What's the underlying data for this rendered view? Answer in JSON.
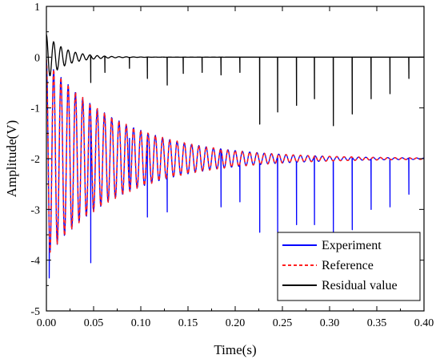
{
  "chart_data": {
    "type": "line",
    "title": "",
    "xlabel": "Time(s)",
    "ylabel": "Amplitude(V)",
    "xlim": [
      0.0,
      0.4
    ],
    "ylim": [
      -5,
      1
    ],
    "xticks": [
      "0.00",
      "0.05",
      "0.10",
      "0.15",
      "0.20",
      "0.25",
      "0.30",
      "0.35",
      "0.40"
    ],
    "yticks": [
      "1",
      "0",
      "-1",
      "-2",
      "-3",
      "-4",
      "-5"
    ],
    "grid": false,
    "legend_position": "bottom-right",
    "series": [
      {
        "name": "Experiment",
        "color": "#0000ff",
        "style": "solid",
        "model": "damped-sine",
        "offset": -2.0,
        "initial_amplitude": 1.95,
        "decay_time_s": 0.08,
        "frequency_hz": 130,
        "sample_step_s": 0.0005,
        "spikes": [
          {
            "t": 0.003,
            "y": -4.35
          },
          {
            "t": 0.047,
            "y": -4.05
          },
          {
            "t": 0.088,
            "y": -1.6
          },
          {
            "t": 0.107,
            "y": -3.15
          },
          {
            "t": 0.128,
            "y": -3.05
          },
          {
            "t": 0.185,
            "y": -2.95
          },
          {
            "t": 0.205,
            "y": -2.85
          },
          {
            "t": 0.226,
            "y": -3.45
          },
          {
            "t": 0.245,
            "y": -3.45
          },
          {
            "t": 0.265,
            "y": -3.3
          },
          {
            "t": 0.284,
            "y": -3.3
          },
          {
            "t": 0.304,
            "y": -3.45
          },
          {
            "t": 0.324,
            "y": -3.4
          },
          {
            "t": 0.344,
            "y": -3.0
          },
          {
            "t": 0.364,
            "y": -2.95
          },
          {
            "t": 0.384,
            "y": -2.7
          }
        ]
      },
      {
        "name": "Reference",
        "color": "#ff2020",
        "style": "dashed",
        "model": "damped-sine",
        "offset": -2.0,
        "initial_amplitude": 1.95,
        "decay_time_s": 0.08,
        "frequency_hz": 130,
        "sample_step_s": 0.0005
      },
      {
        "name": "Residual value",
        "color": "#000000",
        "style": "solid",
        "model": "damped-sine",
        "offset": 0.0,
        "initial_amplitude": 0.45,
        "decay_time_s": 0.02,
        "frequency_hz": 130,
        "sample_step_s": 0.0005,
        "spikes": [
          {
            "t": 0.047,
            "y": -0.5
          },
          {
            "t": 0.062,
            "y": -0.3
          },
          {
            "t": 0.088,
            "y": -0.22
          },
          {
            "t": 0.107,
            "y": -0.42
          },
          {
            "t": 0.128,
            "y": -0.55
          },
          {
            "t": 0.145,
            "y": -0.32
          },
          {
            "t": 0.165,
            "y": -0.3
          },
          {
            "t": 0.185,
            "y": -0.35
          },
          {
            "t": 0.205,
            "y": -0.3
          },
          {
            "t": 0.226,
            "y": -1.32
          },
          {
            "t": 0.245,
            "y": -1.08
          },
          {
            "t": 0.265,
            "y": -0.95
          },
          {
            "t": 0.284,
            "y": -0.82
          },
          {
            "t": 0.304,
            "y": -1.35
          },
          {
            "t": 0.324,
            "y": -1.12
          },
          {
            "t": 0.344,
            "y": -0.82
          },
          {
            "t": 0.364,
            "y": -0.72
          },
          {
            "t": 0.384,
            "y": -0.42
          }
        ]
      }
    ]
  }
}
